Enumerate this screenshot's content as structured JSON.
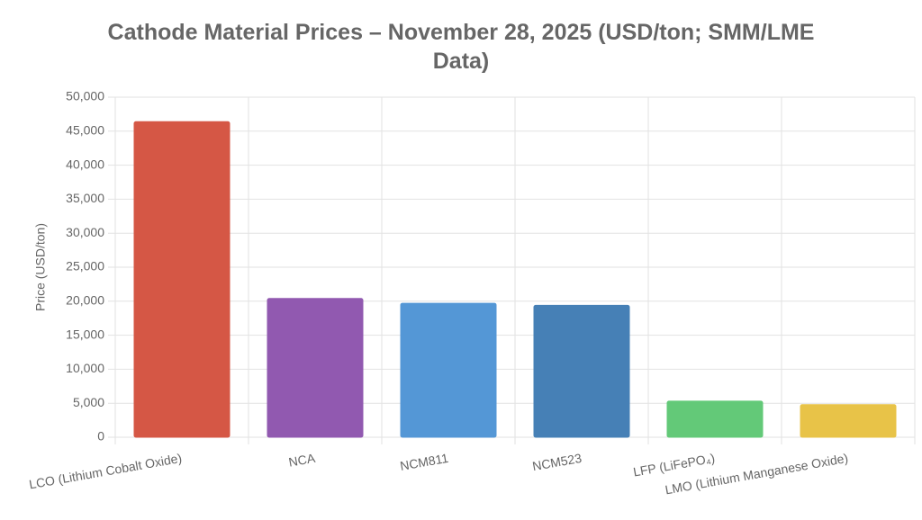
{
  "chart_data": {
    "type": "bar",
    "title": "Cathode Material Prices – November 28, 2025 (USD/ton; SMM/LME Data)",
    "y_label": "Price (USD/ton)",
    "categories": [
      "LCO (Lithium Cobalt Oxide)",
      "NCA",
      "NCM811",
      "NCM523",
      "LFP (LiFePO₄)",
      "LMO (Lithium Manganese Oxide)"
    ],
    "values": [
      46400,
      20400,
      19700,
      19400,
      5300,
      4800
    ],
    "colors": [
      "#d55745",
      "#9159b0",
      "#5497d6",
      "#4680b6",
      "#63c978",
      "#e8c348"
    ],
    "ylim": [
      0,
      50000
    ],
    "yticks": [
      0,
      {
        "value": 5000,
        "label": "5,000"
      },
      {
        "value": 10000,
        "label": "10,000"
      },
      {
        "value": 15000,
        "label": "15,000"
      },
      {
        "value": 20000,
        "label": "20,000"
      },
      {
        "value": 25000,
        "label": "25,000"
      },
      {
        "value": 30000,
        "label": "30,000"
      },
      {
        "value": 35000,
        "label": "35,000"
      },
      {
        "value": 40000,
        "label": "40,000"
      },
      {
        "value": 45000,
        "label": "45,000"
      },
      {
        "value": 50000,
        "label": "50,000"
      }
    ],
    "grid": true
  }
}
